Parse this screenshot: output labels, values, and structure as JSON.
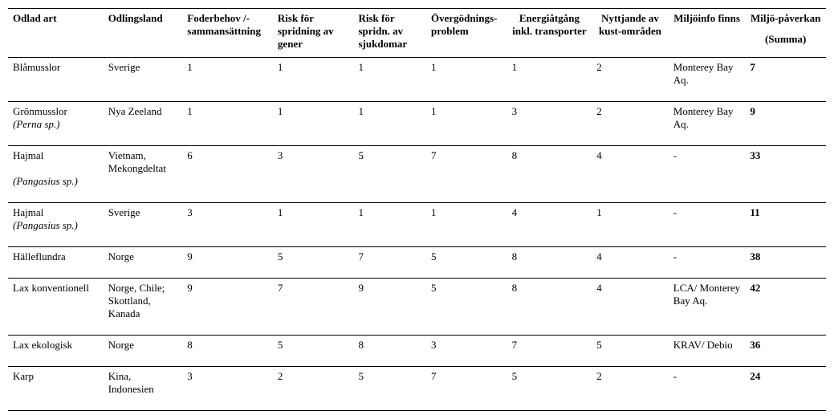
{
  "table": {
    "columns": [
      {
        "key": "odlad_art",
        "label": "Odlad art",
        "align": "left",
        "bold": false
      },
      {
        "key": "odlingsland",
        "label": "Odlingsland",
        "align": "left",
        "bold": false
      },
      {
        "key": "foderbehov",
        "label": "Foderbehov /-sammansättning",
        "align": "left",
        "bold": false
      },
      {
        "key": "risk_gener",
        "label": "Risk för spridning av gener",
        "align": "left",
        "bold": false
      },
      {
        "key": "risk_sjuk",
        "label": "Risk för spridn. av sjukdomar",
        "align": "left",
        "bold": false
      },
      {
        "key": "overgodning",
        "label": "Övergödnings-problem",
        "align": "left",
        "bold": false
      },
      {
        "key": "energi",
        "label": "Energiåtgång inkl. transporter",
        "align": "center",
        "bold": false
      },
      {
        "key": "kust",
        "label": "Nyttjande av kust-områden",
        "align": "center",
        "bold": false
      },
      {
        "key": "miljoinfo",
        "label": "Miljöinfo finns",
        "align": "center",
        "bold": false
      },
      {
        "key": "summa",
        "label": "Miljö-påverkan",
        "align": "center",
        "bold": true,
        "sublabel": "(Summa)"
      }
    ],
    "rows": [
      {
        "odlad_art_main": "Blåmusslor",
        "odlad_art_italic": "",
        "odlingsland": "Sverige",
        "foderbehov": "1",
        "risk_gener": "1",
        "risk_sjuk": "1",
        "overgodning": "1",
        "energi": "1",
        "kust": "2",
        "miljoinfo": "Monterey Bay Aq.",
        "summa": "7"
      },
      {
        "odlad_art_main": "Grönmusslor",
        "odlad_art_italic": "(Perna sp.)",
        "odlingsland": "Nya Zeeland",
        "foderbehov": "1",
        "risk_gener": "1",
        "risk_sjuk": "1",
        "overgodning": "1",
        "energi": "3",
        "kust": "2",
        "miljoinfo": "Monterey Bay Aq.",
        "summa": "9"
      },
      {
        "odlad_art_main": "Hajmal",
        "odlad_art_italic": "(Pangasius sp.)",
        "odlad_art_gap": true,
        "odlingsland": "Vietnam, Mekongdeltat",
        "foderbehov": "6",
        "risk_gener": "3",
        "risk_sjuk": "5",
        "overgodning": "7",
        "energi": "8",
        "kust": "4",
        "miljoinfo": "-",
        "summa": "33"
      },
      {
        "odlad_art_main": "Hajmal",
        "odlad_art_italic": "(Pangasius sp.)",
        "odlingsland": "Sverige",
        "foderbehov": "3",
        "risk_gener": "1",
        "risk_sjuk": "1",
        "overgodning": "1",
        "energi": "4",
        "kust": "1",
        "miljoinfo": "-",
        "summa": "11"
      },
      {
        "odlad_art_main": "Hälleflundra",
        "odlad_art_italic": "",
        "odlingsland": "Norge",
        "foderbehov": "9",
        "risk_gener": "5",
        "risk_sjuk": "7",
        "overgodning": "5",
        "energi": "8",
        "kust": "4",
        "miljoinfo": "-",
        "summa": "38"
      },
      {
        "odlad_art_main": "Lax konventionell",
        "odlad_art_italic": "",
        "odlingsland": "Norge, Chile; Skottland, Kanada",
        "foderbehov": "9",
        "risk_gener": "7",
        "risk_sjuk": "9",
        "overgodning": "5",
        "energi": "8",
        "kust": "4",
        "miljoinfo": "LCA/ Monterey Bay Aq.",
        "summa": "42"
      },
      {
        "odlad_art_main": "Lax ekologisk",
        "odlad_art_italic": "",
        "odlingsland": "Norge",
        "foderbehov": "8",
        "risk_gener": "5",
        "risk_sjuk": "8",
        "overgodning": "3",
        "energi": "7",
        "kust": "5",
        "miljoinfo": "KRAV/ Debio",
        "summa": "36"
      },
      {
        "odlad_art_main": "Karp",
        "odlad_art_italic": "",
        "odlingsland": "Kina, Indonesien",
        "foderbehov": "3",
        "risk_gener": "2",
        "risk_sjuk": "5",
        "overgodning": "7",
        "energi": "5",
        "kust": "2",
        "miljoinfo": "-",
        "summa": "24"
      }
    ],
    "style": {
      "font_family": "Times New Roman",
      "font_size_pt": 10,
      "header_font_weight": "bold",
      "border_color": "#000000",
      "background_color": "#ffffff",
      "text_color": "#000000",
      "summa_column_bold": true
    }
  }
}
